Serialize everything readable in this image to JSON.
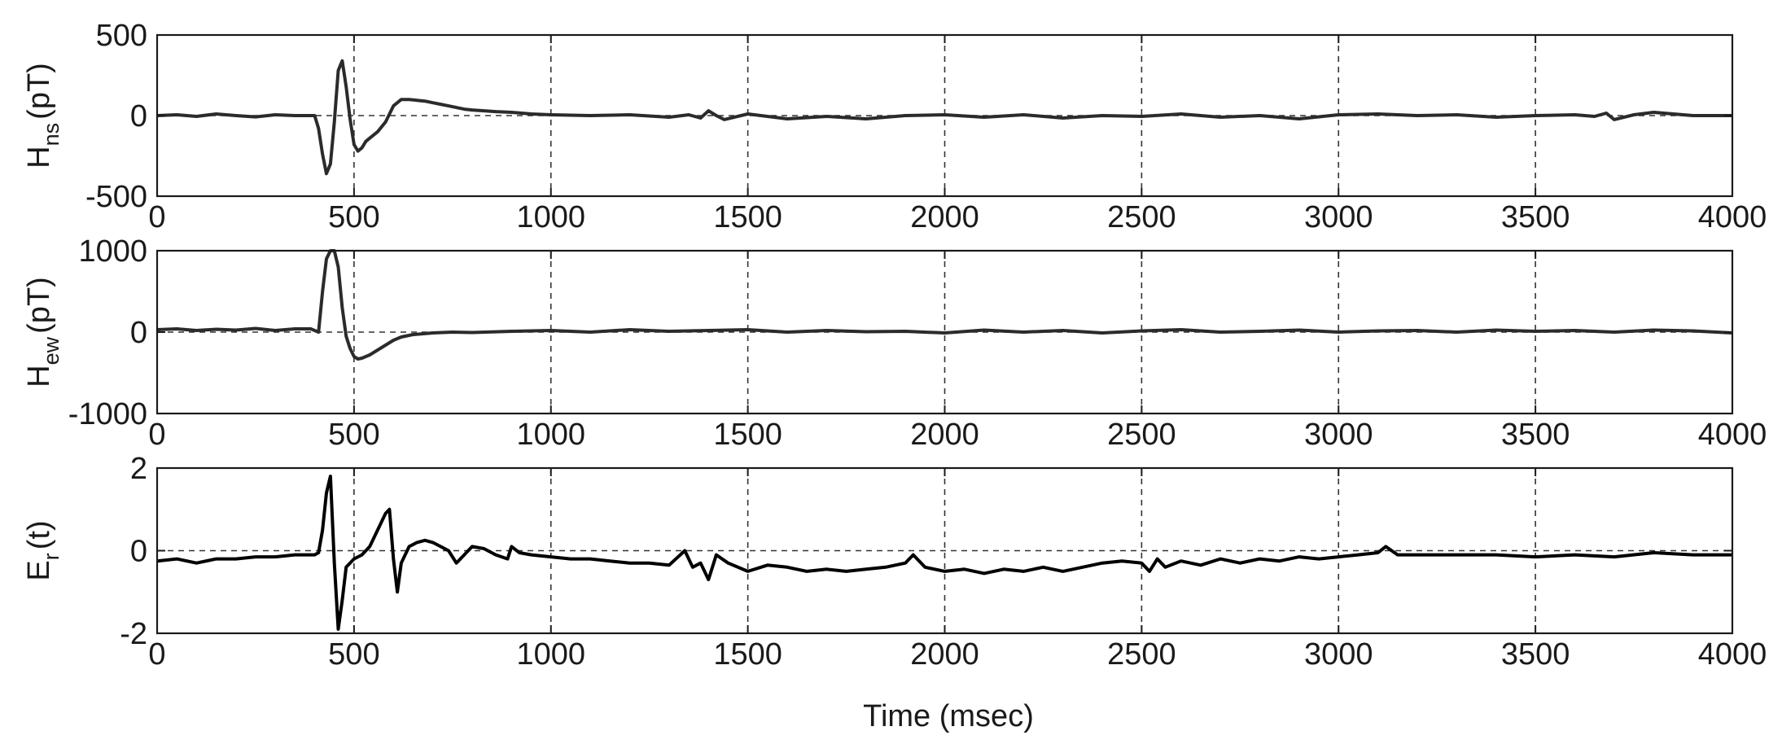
{
  "figure": {
    "xlabel": "Time (msec)"
  },
  "chart_data": [
    {
      "type": "line",
      "ylabel_main": "H",
      "ylabel_sub": "ns",
      "ylabel_unit": "(pT)",
      "xlim": [
        0,
        4000
      ],
      "ylim": [
        -500,
        500
      ],
      "xticks": [
        "0",
        "500",
        "1000",
        "1500",
        "2000",
        "2500",
        "3000",
        "3500",
        "4000"
      ],
      "yticks": [
        "500",
        "0",
        "-500"
      ],
      "grid": true,
      "zero_line": true,
      "color": "#2b2b2b",
      "series": [
        {
          "x": [
            0,
            50,
            100,
            150,
            200,
            250,
            300,
            350,
            400,
            410,
            420,
            430,
            440,
            450,
            460,
            470,
            480,
            490,
            500,
            510,
            520,
            530,
            540,
            560,
            580,
            600,
            620,
            640,
            660,
            680,
            700,
            720,
            740,
            760,
            780,
            800,
            830,
            860,
            900,
            950,
            1000,
            1100,
            1200,
            1300,
            1350,
            1380,
            1400,
            1420,
            1440,
            1500,
            1600,
            1700,
            1800,
            1900,
            2000,
            2100,
            2200,
            2300,
            2400,
            2500,
            2600,
            2700,
            2800,
            2900,
            3000,
            3100,
            3200,
            3300,
            3400,
            3500,
            3600,
            3650,
            3680,
            3700,
            3750,
            3800,
            3900,
            4000
          ],
          "y": [
            0,
            5,
            -5,
            10,
            0,
            -8,
            5,
            0,
            0,
            -80,
            -240,
            -360,
            -300,
            -40,
            280,
            340,
            180,
            -20,
            -180,
            -220,
            -200,
            -160,
            -140,
            -100,
            -40,
            60,
            100,
            100,
            95,
            90,
            80,
            70,
            60,
            50,
            40,
            35,
            30,
            25,
            20,
            10,
            5,
            0,
            5,
            -10,
            5,
            -15,
            30,
            0,
            -25,
            10,
            -20,
            -5,
            -20,
            0,
            5,
            -10,
            5,
            -15,
            0,
            -5,
            10,
            -10,
            0,
            -20,
            5,
            10,
            0,
            5,
            -10,
            0,
            5,
            -5,
            15,
            -25,
            5,
            20,
            0,
            0
          ]
        }
      ]
    },
    {
      "type": "line",
      "ylabel_main": "H",
      "ylabel_sub": "ew",
      "ylabel_unit": "(pT)",
      "xlim": [
        0,
        4000
      ],
      "ylim": [
        -1000,
        1000
      ],
      "xticks": [
        "0",
        "500",
        "1000",
        "1500",
        "2000",
        "2500",
        "3000",
        "3500",
        "4000"
      ],
      "yticks": [
        "1000",
        "0",
        "-1000"
      ],
      "grid": true,
      "zero_line": true,
      "color": "#2b2b2b",
      "series": [
        {
          "x": [
            0,
            50,
            100,
            150,
            200,
            250,
            300,
            350,
            390,
            410,
            420,
            430,
            440,
            450,
            460,
            470,
            480,
            490,
            500,
            510,
            520,
            540,
            560,
            580,
            600,
            620,
            650,
            700,
            750,
            800,
            900,
            1000,
            1100,
            1200,
            1300,
            1400,
            1500,
            1600,
            1700,
            1800,
            1900,
            2000,
            2100,
            2200,
            2300,
            2400,
            2500,
            2600,
            2700,
            2800,
            2900,
            3000,
            3100,
            3200,
            3300,
            3400,
            3500,
            3600,
            3700,
            3800,
            3900,
            4000
          ],
          "y": [
            30,
            40,
            20,
            35,
            25,
            45,
            20,
            40,
            40,
            0,
            500,
            900,
            1000,
            1000,
            800,
            300,
            -50,
            -200,
            -300,
            -330,
            -320,
            -280,
            -220,
            -160,
            -100,
            -60,
            -30,
            -10,
            0,
            -5,
            10,
            20,
            0,
            30,
            10,
            20,
            30,
            0,
            20,
            5,
            10,
            -10,
            25,
            0,
            20,
            -10,
            15,
            30,
            0,
            10,
            25,
            0,
            15,
            20,
            0,
            25,
            10,
            20,
            0,
            25,
            15,
            -10
          ]
        }
      ]
    },
    {
      "type": "line",
      "ylabel_main": "E",
      "ylabel_sub": "r",
      "ylabel_unit": "(t)",
      "xlim": [
        0,
        4000
      ],
      "ylim": [
        -2,
        2
      ],
      "xticks": [
        "0",
        "500",
        "1000",
        "1500",
        "2000",
        "2500",
        "3000",
        "3500",
        "4000"
      ],
      "yticks": [
        "2",
        "0",
        "-2"
      ],
      "grid": true,
      "zero_line": true,
      "color": "#000000",
      "series": [
        {
          "x": [
            0,
            50,
            100,
            150,
            200,
            250,
            300,
            350,
            400,
            410,
            420,
            430,
            440,
            450,
            460,
            470,
            480,
            500,
            520,
            540,
            560,
            580,
            590,
            600,
            610,
            620,
            640,
            660,
            680,
            700,
            720,
            740,
            760,
            780,
            800,
            830,
            860,
            890,
            900,
            920,
            950,
            1000,
            1050,
            1100,
            1150,
            1200,
            1250,
            1300,
            1340,
            1360,
            1380,
            1400,
            1420,
            1450,
            1500,
            1550,
            1600,
            1650,
            1700,
            1750,
            1800,
            1850,
            1900,
            1920,
            1950,
            2000,
            2050,
            2100,
            2150,
            2200,
            2250,
            2300,
            2350,
            2400,
            2450,
            2500,
            2520,
            2540,
            2560,
            2600,
            2650,
            2700,
            2750,
            2800,
            2850,
            2900,
            2950,
            3000,
            3050,
            3100,
            3120,
            3150,
            3200,
            3300,
            3400,
            3500,
            3600,
            3700,
            3800,
            3900,
            4000
          ],
          "y": [
            -0.25,
            -0.2,
            -0.3,
            -0.2,
            -0.2,
            -0.15,
            -0.15,
            -0.1,
            -0.1,
            -0.05,
            0.5,
            1.4,
            1.8,
            -0.3,
            -1.9,
            -1.2,
            -0.4,
            -0.2,
            -0.1,
            0.1,
            0.5,
            0.9,
            1.0,
            -0.2,
            -1.0,
            -0.3,
            0.1,
            0.2,
            0.25,
            0.2,
            0.1,
            0.0,
            -0.3,
            -0.1,
            0.1,
            0.05,
            -0.1,
            -0.2,
            0.1,
            -0.05,
            -0.1,
            -0.15,
            -0.2,
            -0.2,
            -0.25,
            -0.3,
            -0.3,
            -0.35,
            0.0,
            -0.4,
            -0.3,
            -0.7,
            -0.1,
            -0.3,
            -0.5,
            -0.35,
            -0.4,
            -0.5,
            -0.45,
            -0.5,
            -0.45,
            -0.4,
            -0.3,
            -0.1,
            -0.4,
            -0.5,
            -0.45,
            -0.55,
            -0.45,
            -0.5,
            -0.4,
            -0.5,
            -0.4,
            -0.3,
            -0.25,
            -0.3,
            -0.5,
            -0.2,
            -0.4,
            -0.25,
            -0.35,
            -0.2,
            -0.3,
            -0.2,
            -0.25,
            -0.15,
            -0.2,
            -0.15,
            -0.1,
            -0.05,
            0.1,
            -0.1,
            -0.1,
            -0.1,
            -0.1,
            -0.15,
            -0.1,
            -0.15,
            -0.05,
            -0.1,
            -0.1
          ]
        }
      ]
    }
  ]
}
